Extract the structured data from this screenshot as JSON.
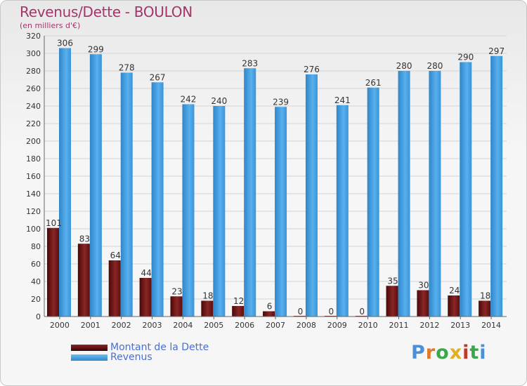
{
  "title": "Revenus/Dette - BOULON",
  "subtitle": "(en milliers d'€)",
  "legend": {
    "debt_label": "Montant de la Dette",
    "revenue_label": "Revenus"
  },
  "logo": {
    "text": "Proxiti"
  },
  "colors": {
    "title": "#a3356b",
    "debt": "#7a1a1a",
    "revenue": "#4aa3e3",
    "legend_text": "#4a6fd0"
  },
  "chart_data": {
    "type": "bar",
    "categories": [
      "2000",
      "2001",
      "2002",
      "2003",
      "2004",
      "2005",
      "2006",
      "2007",
      "2008",
      "2009",
      "2010",
      "2011",
      "2012",
      "2013",
      "2014"
    ],
    "series": [
      {
        "name": "Montant de la Dette",
        "values": [
          101,
          83,
          64,
          44,
          23,
          18,
          12,
          6,
          0,
          0,
          0,
          35,
          30,
          24,
          18
        ]
      },
      {
        "name": "Revenus",
        "values": [
          306,
          299,
          278,
          267,
          242,
          240,
          283,
          239,
          276,
          241,
          261,
          280,
          280,
          290,
          297
        ]
      }
    ],
    "yticks": [
      "0",
      "20",
      "40",
      "60",
      "80",
      "100",
      "120",
      "140",
      "160",
      "180",
      "200",
      "220",
      "240",
      "260",
      "280",
      "300",
      "320"
    ],
    "ylim": [
      0,
      320
    ],
    "title": "Revenus/Dette - BOULON",
    "ylabel": "(en milliers d'€)",
    "xlabel": "",
    "grid": true
  }
}
